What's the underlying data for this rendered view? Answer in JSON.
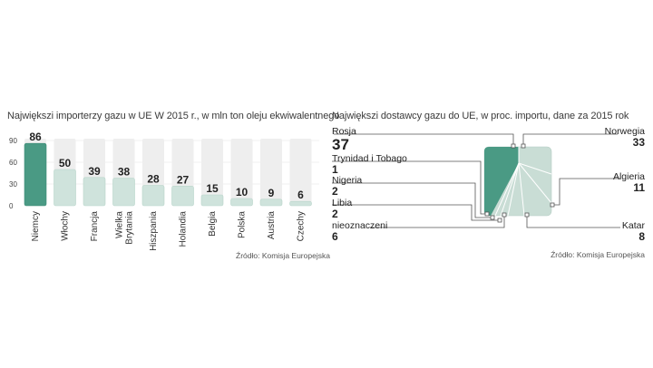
{
  "chart_data": [
    {
      "type": "bar",
      "title": "Największi importerzy gazu w UE W 2015 r., w mln ton oleju ekwiwalentnego",
      "categories": [
        "Niemcy",
        "Włochy",
        "Francja",
        "Wielka Brytania",
        "Hiszpania",
        "Holandia",
        "Belgia",
        "Polska",
        "Austria",
        "Czechy"
      ],
      "values": [
        86,
        50,
        39,
        38,
        28,
        27,
        15,
        10,
        9,
        6
      ],
      "yticks": [
        0,
        30,
        60,
        90
      ],
      "ylim": [
        0,
        90
      ],
      "source": "Źródło: Komisja Europejska",
      "colors": {
        "highlight": "#4a9a84",
        "bar": "#cfe3dc",
        "band": "#eeeeee"
      }
    },
    {
      "type": "pie",
      "title": "Największi dostawcy gazu do UE, w proc. importu, dane za 2015 rok",
      "slices": [
        {
          "label": "Rosja",
          "value": 37
        },
        {
          "label": "Norwegia",
          "value": 33
        },
        {
          "label": "Algieria",
          "value": 11
        },
        {
          "label": "Katar",
          "value": 8
        },
        {
          "label": "nieoznaczeni",
          "value": 6
        },
        {
          "label": "Libia",
          "value": 2
        },
        {
          "label": "Nigeria",
          "value": 2
        },
        {
          "label": "Trynidad i Tobago",
          "value": 1
        }
      ],
      "source": "Źródło: Komisja Europejska",
      "colors": {
        "russia": "#4a9a84",
        "rest": "#c9ddd5",
        "lines": "#555555"
      }
    }
  ]
}
